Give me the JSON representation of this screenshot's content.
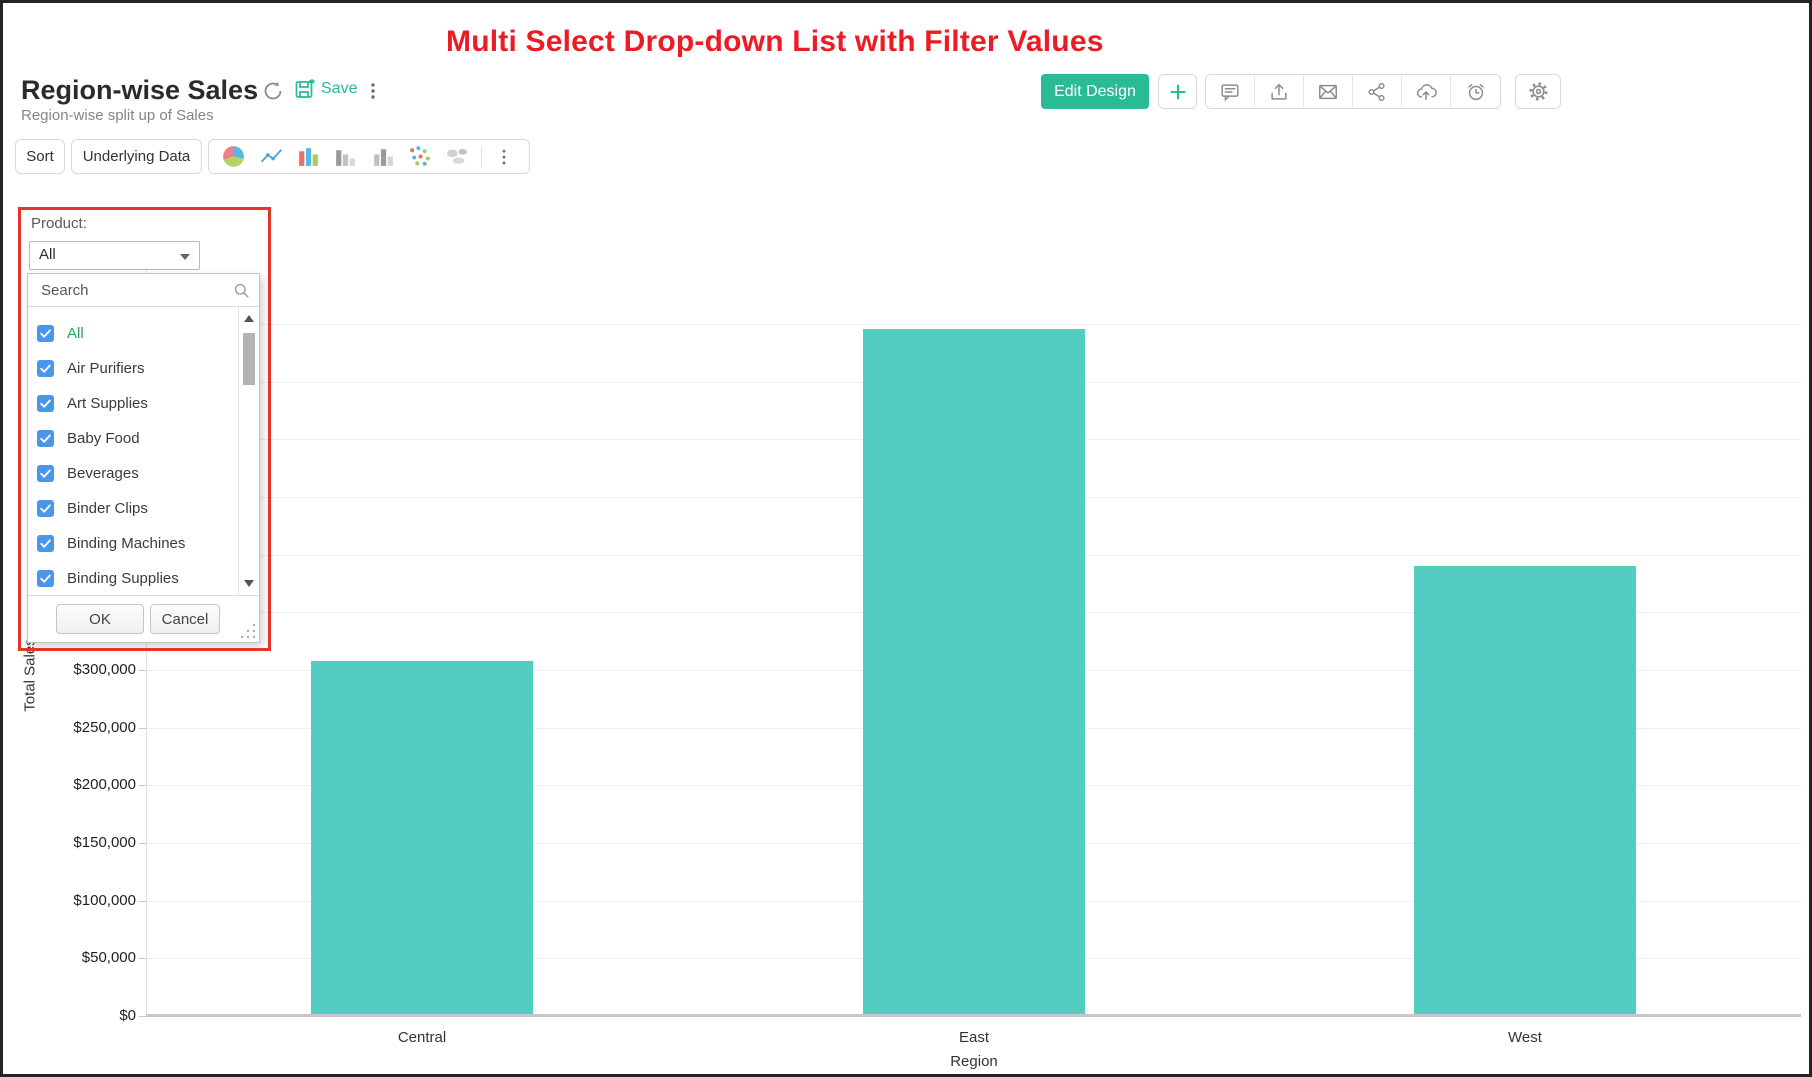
{
  "annotation": {
    "title": "Multi Select Drop-down List with Filter Values"
  },
  "header": {
    "title": "Region-wise Sales",
    "subtitle": "Region-wise split up of Sales",
    "save_label": "Save",
    "edit_design_label": "Edit Design"
  },
  "toolbar": {
    "sort_label": "Sort",
    "underlying_data_label": "Underlying Data"
  },
  "filter": {
    "label": "Product:",
    "selected_value": "All",
    "search_placeholder": "Search",
    "ok_label": "OK",
    "cancel_label": "Cancel",
    "options": [
      {
        "label": "All",
        "checked": true,
        "highlight": true
      },
      {
        "label": "Air Purifiers",
        "checked": true,
        "highlight": false
      },
      {
        "label": "Art Supplies",
        "checked": true,
        "highlight": false
      },
      {
        "label": "Baby Food",
        "checked": true,
        "highlight": false
      },
      {
        "label": "Beverages",
        "checked": true,
        "highlight": false
      },
      {
        "label": "Binder Clips",
        "checked": true,
        "highlight": false
      },
      {
        "label": "Binding Machines",
        "checked": true,
        "highlight": false
      },
      {
        "label": "Binding Supplies",
        "checked": true,
        "highlight": false
      }
    ]
  },
  "chart_data": {
    "type": "bar",
    "title": "Region-wise Sales",
    "categories": [
      "Central",
      "East",
      "West"
    ],
    "values": [
      308000,
      596000,
      390000
    ],
    "xlabel": "Region",
    "ylabel": "Total Sales",
    "ylim": [
      0,
      650000
    ],
    "ytick_step": 50000,
    "ytick_prefix": "$",
    "grid": true,
    "legend": false,
    "bar_color": "#53cdc2"
  },
  "colors": {
    "accent_teal": "#2abb96",
    "bar_teal": "#53cdc2",
    "checkbox_blue": "#4a96ea",
    "highlight_green": "#26a55c",
    "annotation_red": "#e5342c",
    "title_red": "#ec1c24"
  }
}
